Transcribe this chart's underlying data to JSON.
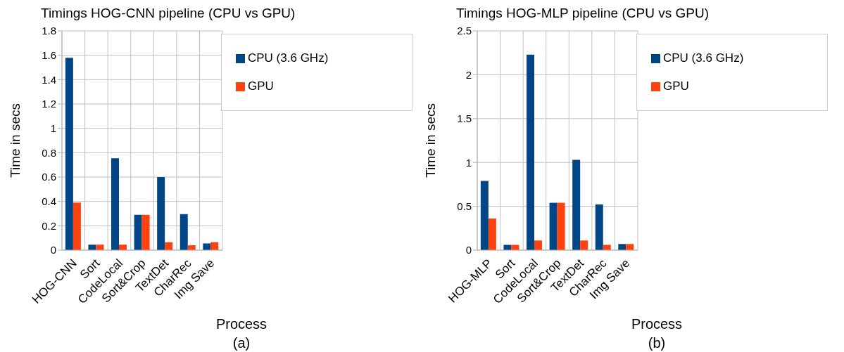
{
  "chart_data": [
    {
      "type": "bar",
      "title": "Timings HOG-CNN pipeline (CPU vs GPU)",
      "xlabel": "Process",
      "ylabel": "Time in secs",
      "categories": [
        "HOG-CNN",
        "Sort",
        "CodeLocal",
        "Sort&Crop",
        "TextDet",
        "CharRec",
        "Img Save"
      ],
      "series": [
        {
          "name": "CPU (3.6 GHz)",
          "color": "#004586",
          "values": [
            1.58,
            0.045,
            0.755,
            0.29,
            0.6,
            0.295,
            0.055
          ]
        },
        {
          "name": "GPU",
          "color": "#ff420e",
          "values": [
            0.39,
            0.045,
            0.045,
            0.29,
            0.065,
            0.04,
            0.065
          ]
        }
      ],
      "ylim": [
        0,
        1.8
      ],
      "yticks": [
        0,
        0.2,
        0.4,
        0.6,
        0.8,
        1,
        1.2,
        1.4,
        1.6,
        1.8
      ],
      "grid": true,
      "legend": "top right",
      "annotations": [
        "(a)"
      ]
    },
    {
      "type": "bar",
      "title": "Timings HOG-MLP pipeline (CPU vs GPU)",
      "xlabel": "Process",
      "ylabel": "Time in secs",
      "categories": [
        "HOG-MLP",
        "Sort",
        "CodeLocal",
        "Sort&Crop",
        "TextDet",
        "CharRec",
        "Img Save"
      ],
      "series": [
        {
          "name": "CPU (3.6 GHz)",
          "color": "#004586",
          "values": [
            0.79,
            0.06,
            2.23,
            0.54,
            1.03,
            0.52,
            0.07
          ]
        },
        {
          "name": "GPU",
          "color": "#ff420e",
          "values": [
            0.36,
            0.06,
            0.11,
            0.54,
            0.11,
            0.06,
            0.07
          ]
        }
      ],
      "ylim": [
        0,
        2.5
      ],
      "yticks": [
        0,
        0.5,
        1,
        1.5,
        2,
        2.5
      ],
      "grid": true,
      "legend": "top right",
      "annotations": [
        "(b)"
      ]
    }
  ]
}
